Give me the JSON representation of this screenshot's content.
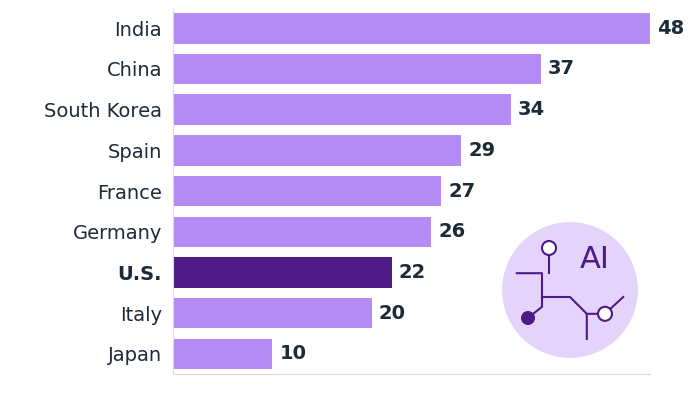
{
  "chart_data": {
    "type": "bar",
    "orientation": "horizontal",
    "categories": [
      "India",
      "China",
      "South Korea",
      "Spain",
      "France",
      "Germany",
      "U.S.",
      "Italy",
      "Japan"
    ],
    "values": [
      48,
      37,
      34,
      29,
      27,
      26,
      22,
      20,
      10
    ],
    "colors": [
      "#b58cf6",
      "#b58cf6",
      "#b58cf6",
      "#b58cf6",
      "#b58cf6",
      "#b58cf6",
      "#4e1a86",
      "#b58cf6",
      "#b58cf6"
    ],
    "xlim": [
      0,
      48
    ],
    "data_labels": true,
    "tick_labels": "y",
    "grid": false,
    "annotations": [
      "AI"
    ]
  }
}
